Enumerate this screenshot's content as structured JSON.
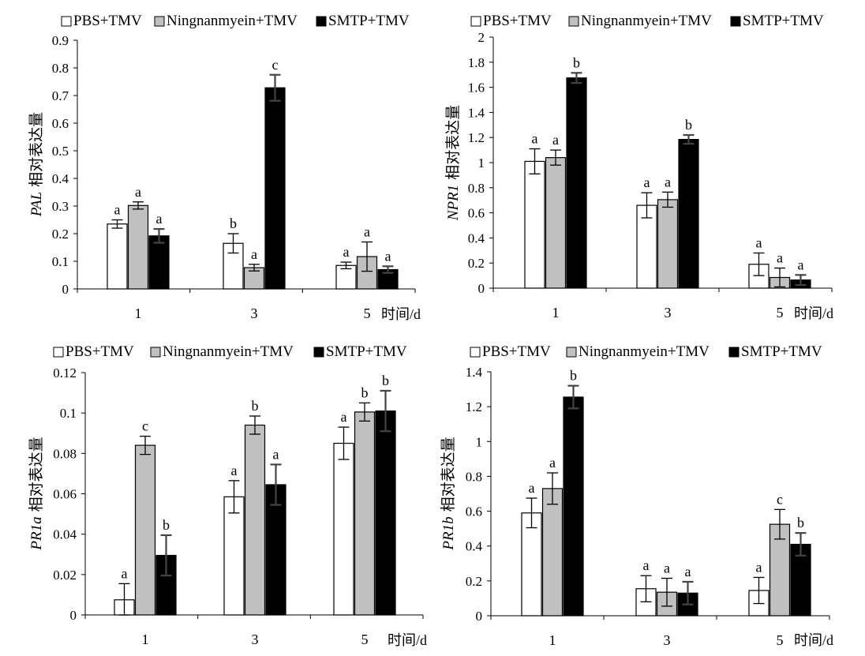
{
  "legend": [
    {
      "name": "PBS+TMV",
      "color": "#ffffff"
    },
    {
      "name": "Ningnanmyein+TMV",
      "color": "#c0c0c0"
    },
    {
      "name": "SMTP+TMV",
      "color": "#000000"
    }
  ],
  "chart_data": [
    {
      "type": "bar",
      "categories": [
        "1",
        "3",
        "5"
      ],
      "xlabel": "时间/d",
      "ylabel_gene": "PAL",
      "ylabel_text": "相对表达量",
      "ylim": [
        0,
        0.9
      ],
      "yticks": [
        "0",
        "0.1",
        "0.2",
        "0.3",
        "0.4",
        "0.5",
        "0.6",
        "0.7",
        "0.8",
        "0.9"
      ],
      "series": [
        {
          "name": "PBS+TMV",
          "values": [
            0.235,
            0.165,
            0.085
          ],
          "errors": [
            0.015,
            0.035,
            0.012
          ],
          "labels": [
            "a",
            "b",
            "a"
          ]
        },
        {
          "name": "Ningnanmyein+TMV",
          "values": [
            0.302,
            0.077,
            0.117
          ],
          "errors": [
            0.013,
            0.012,
            0.053
          ],
          "labels": [
            "a",
            "a",
            "a"
          ]
        },
        {
          "name": "SMTP+TMV",
          "values": [
            0.192,
            0.728,
            0.07
          ],
          "errors": [
            0.025,
            0.047,
            0.012
          ],
          "labels": [
            "a",
            "c",
            "a"
          ]
        }
      ]
    },
    {
      "type": "bar",
      "categories": [
        "1",
        "3",
        "5"
      ],
      "xlabel": "时间/d",
      "ylabel_gene": "NPR1",
      "ylabel_text": "相对表达量",
      "ylim": [
        0,
        2
      ],
      "yticks": [
        "0",
        "0.2",
        "0.4",
        "0.6",
        "0.8",
        "1",
        "1.2",
        "1.4",
        "1.6",
        "1.8",
        "2"
      ],
      "series": [
        {
          "name": "PBS+TMV",
          "values": [
            1.01,
            0.66,
            0.19
          ],
          "errors": [
            0.1,
            0.1,
            0.09
          ],
          "labels": [
            "a",
            "a",
            "a"
          ]
        },
        {
          "name": "Ningnanmyein+TMV",
          "values": [
            1.04,
            0.705,
            0.085
          ],
          "errors": [
            0.06,
            0.06,
            0.075
          ],
          "labels": [
            "a",
            "a",
            "a"
          ]
        },
        {
          "name": "SMTP+TMV",
          "values": [
            1.675,
            1.185,
            0.065
          ],
          "errors": [
            0.04,
            0.035,
            0.04
          ],
          "labels": [
            "b",
            "b",
            "a"
          ]
        }
      ]
    },
    {
      "type": "bar",
      "categories": [
        "1",
        "3",
        "5"
      ],
      "xlabel": "时间/d",
      "ylabel_gene": "PR1a",
      "ylabel_text": "相对表达量",
      "ylim": [
        0,
        0.12
      ],
      "yticks": [
        "0",
        "0.02",
        "0.04",
        "0.06",
        "0.08",
        "0.1",
        "0.12"
      ],
      "series": [
        {
          "name": "PBS+TMV",
          "values": [
            0.0075,
            0.0585,
            0.085
          ],
          "errors": [
            0.008,
            0.008,
            0.008
          ],
          "labels": [
            "a",
            "a",
            "a"
          ]
        },
        {
          "name": "Ningnanmyein+TMV",
          "values": [
            0.084,
            0.094,
            0.1005
          ],
          "errors": [
            0.0045,
            0.0045,
            0.0045
          ],
          "labels": [
            "c",
            "b",
            "b"
          ]
        },
        {
          "name": "SMTP+TMV",
          "values": [
            0.0295,
            0.0645,
            0.101
          ],
          "errors": [
            0.01,
            0.01,
            0.01
          ],
          "labels": [
            "b",
            "a",
            "b"
          ]
        }
      ]
    },
    {
      "type": "bar",
      "categories": [
        "1",
        "3",
        "5"
      ],
      "xlabel": "时间/d",
      "ylabel_gene": "PR1b",
      "ylabel_text": "相对表达量",
      "ylim": [
        0,
        1.4
      ],
      "yticks": [
        "0",
        "0.2",
        "0.4",
        "0.6",
        "0.8",
        "1",
        "1.2",
        "1.4"
      ],
      "series": [
        {
          "name": "PBS+TMV",
          "values": [
            0.59,
            0.155,
            0.145
          ],
          "errors": [
            0.085,
            0.075,
            0.075
          ],
          "labels": [
            "a",
            "a",
            "a"
          ]
        },
        {
          "name": "Ningnanmyein+TMV",
          "values": [
            0.73,
            0.135,
            0.525
          ],
          "errors": [
            0.09,
            0.08,
            0.085
          ],
          "labels": [
            "a",
            "a",
            "c"
          ]
        },
        {
          "name": "SMTP+TMV",
          "values": [
            1.255,
            0.13,
            0.41
          ],
          "errors": [
            0.065,
            0.065,
            0.065
          ],
          "labels": [
            "b",
            "a",
            "b"
          ]
        }
      ]
    }
  ]
}
